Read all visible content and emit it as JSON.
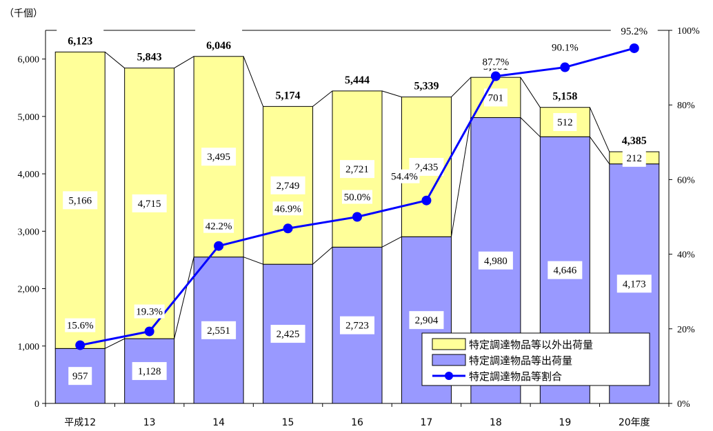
{
  "chart_data": {
    "type": "bar",
    "stacked": true,
    "unit_label": "（千個）",
    "categories": [
      "平成12",
      "13",
      "14",
      "15",
      "16",
      "17",
      "18",
      "19",
      "20年度"
    ],
    "series": [
      {
        "name": "特定調達物品等出荷量",
        "color": "#9999ff",
        "values": [
          957,
          1128,
          2551,
          2425,
          2723,
          2904,
          4980,
          4646,
          4173
        ]
      },
      {
        "name": "特定調達物品等以外出荷量",
        "color": "#ffff99",
        "values": [
          5166,
          4715,
          3495,
          2749,
          2721,
          2435,
          701,
          512,
          212
        ]
      }
    ],
    "totals": [
      6123,
      5843,
      6046,
      5174,
      5444,
      5339,
      5681,
      5158,
      4385
    ],
    "line_series": {
      "name": "特定調達物品等割合",
      "color": "#0000ff",
      "axis": "right",
      "values": [
        15.6,
        19.3,
        42.2,
        46.9,
        50.0,
        54.4,
        87.7,
        90.1,
        95.2
      ]
    },
    "y_left": {
      "min": 0,
      "max": 6500,
      "ticks": [
        0,
        1000,
        2000,
        3000,
        4000,
        5000,
        6000
      ]
    },
    "y_right": {
      "min": 0,
      "max": 100,
      "ticks": [
        0,
        20,
        40,
        60,
        80,
        100
      ]
    },
    "legend_position": "bottom-right",
    "legend_order": [
      1,
      0,
      "line"
    ],
    "grid": false
  }
}
